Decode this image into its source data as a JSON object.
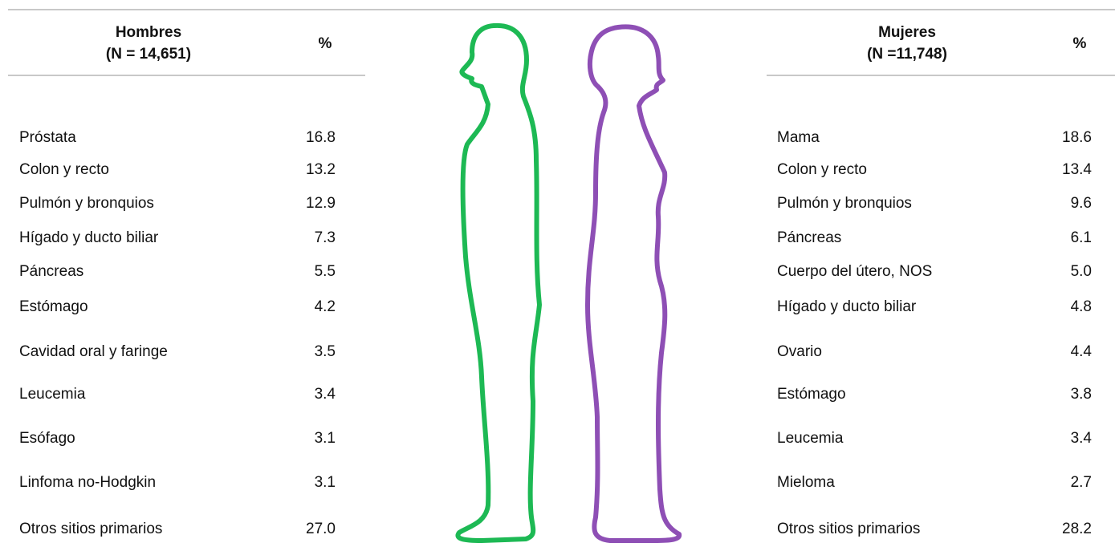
{
  "hombres": {
    "title": "Hombres",
    "subtitle": "(N = 14,651)",
    "pct_header": "%",
    "rows": [
      [
        "Próstata",
        "16.8"
      ],
      [
        "Colon y recto",
        "13.2"
      ],
      [
        "Pulmón y bronquios",
        "12.9"
      ],
      [
        "Hígado y ducto biliar",
        "7.3"
      ],
      [
        "Páncreas",
        "5.5"
      ],
      [
        "Estómago",
        "4.2"
      ],
      [
        "Cavidad oral y faringe",
        "3.5"
      ],
      [
        "Leucemia",
        "3.4"
      ],
      [
        "Esófago",
        "3.1"
      ],
      [
        "Linfoma no-Hodgkin",
        "3.1"
      ],
      [
        "Otros sitios primarios",
        "27.0"
      ]
    ]
  },
  "mujeres": {
    "title": "Mujeres",
    "subtitle": "(N =11,748)",
    "pct_header": "%",
    "rows": [
      [
        "Mama",
        "18.6"
      ],
      [
        "Colon y recto",
        "13.4"
      ],
      [
        "Pulmón y bronquios",
        "9.6"
      ],
      [
        "Páncreas",
        "6.1"
      ],
      [
        "Cuerpo del útero, NOS",
        "5.0"
      ],
      [
        "Hígado y ducto biliar",
        "4.8"
      ],
      [
        "Ovario",
        "4.4"
      ],
      [
        "Estómago",
        "3.8"
      ],
      [
        "Leucemia",
        "3.4"
      ],
      [
        "Mieloma",
        "2.7"
      ],
      [
        "Otros sitios primarios",
        "28.2"
      ]
    ]
  }
}
